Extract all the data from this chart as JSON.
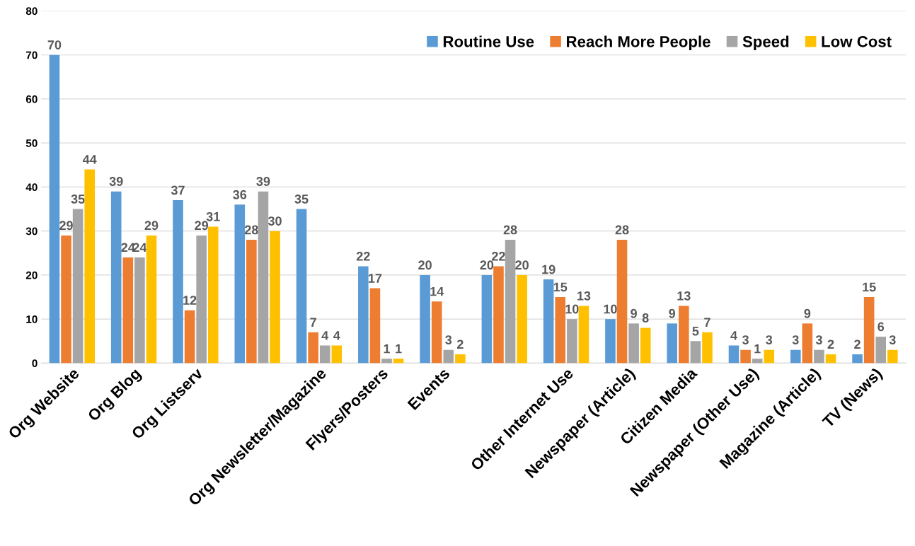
{
  "chart_data": {
    "type": "bar",
    "categories": [
      "Org Website",
      "Org Blog",
      "Org Listserv",
      null,
      "Org Newsletter/Magazine",
      "Flyers/Posters",
      "Events",
      null,
      "Other Internet Use",
      "Newspaper (Article)",
      "Citizen Media",
      "Newspaper (Other Use)",
      "Magazine (Article)",
      "TV (News)"
    ],
    "series": [
      {
        "name": "Routine Use",
        "color": "#5b9bd5",
        "values": [
          70,
          39,
          37,
          36,
          35,
          22,
          20,
          20,
          19,
          10,
          9,
          4,
          3,
          2
        ]
      },
      {
        "name": "Reach More People",
        "color": "#ed7d31",
        "values": [
          29,
          24,
          12,
          28,
          7,
          17,
          14,
          22,
          15,
          28,
          13,
          3,
          9,
          15
        ]
      },
      {
        "name": "Speed",
        "color": "#a5a5a5",
        "values": [
          35,
          24,
          29,
          39,
          4,
          1,
          3,
          28,
          10,
          9,
          5,
          1,
          3,
          6
        ]
      },
      {
        "name": "Low Cost",
        "color": "#ffc000",
        "values": [
          44,
          29,
          31,
          30,
          4,
          1,
          2,
          20,
          13,
          8,
          7,
          3,
          2,
          3
        ]
      }
    ],
    "ylim": [
      0,
      80
    ],
    "yticks": [
      0,
      10,
      20,
      30,
      40,
      50,
      60,
      70,
      80
    ],
    "grid": "y",
    "legend": "top right",
    "data_labels": true
  }
}
